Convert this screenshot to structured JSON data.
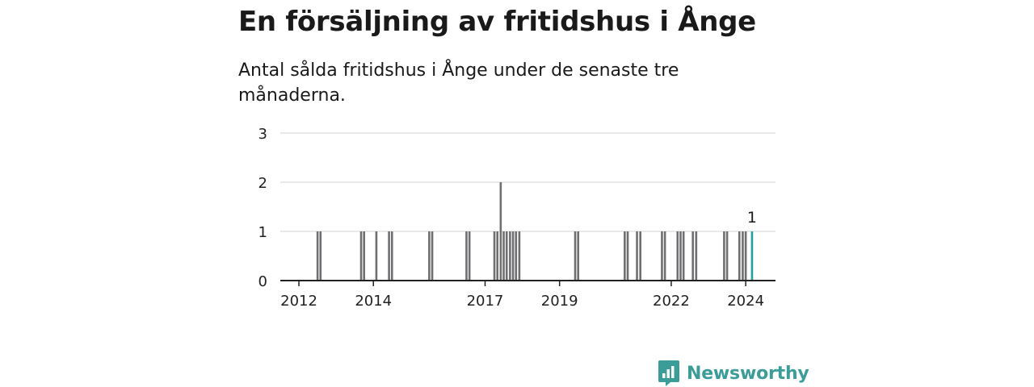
{
  "title": "En försäljning av fritidshus i Ånge",
  "subtitle": "Antal sålda fritidshus i Ånge under de senaste tre månaderna.",
  "brand": {
    "name": "Newsworthy"
  },
  "colors": {
    "bar": "#6f6f71",
    "highlight": "#1fa39c",
    "grid": "#dcdcdc",
    "axis": "#222222",
    "brand": "#3b9c98"
  },
  "chart_data": {
    "type": "bar",
    "x_start": 2011.5,
    "x_end": 2024.8,
    "ylim": [
      0,
      3
    ],
    "yticks": [
      0,
      1,
      2,
      3
    ],
    "xticks": [
      "2012",
      "2014",
      "2017",
      "2019",
      "2022",
      "2024"
    ],
    "grid": true,
    "bars": [
      {
        "x": 2012.5,
        "value": 1
      },
      {
        "x": 2012.58,
        "value": 1
      },
      {
        "x": 2013.67,
        "value": 1
      },
      {
        "x": 2013.75,
        "value": 1
      },
      {
        "x": 2014.08,
        "value": 1
      },
      {
        "x": 2014.42,
        "value": 1
      },
      {
        "x": 2014.5,
        "value": 1
      },
      {
        "x": 2015.5,
        "value": 1
      },
      {
        "x": 2015.58,
        "value": 1
      },
      {
        "x": 2016.5,
        "value": 1
      },
      {
        "x": 2016.58,
        "value": 1
      },
      {
        "x": 2017.25,
        "value": 1
      },
      {
        "x": 2017.33,
        "value": 1
      },
      {
        "x": 2017.42,
        "value": 2
      },
      {
        "x": 2017.5,
        "value": 1
      },
      {
        "x": 2017.58,
        "value": 1
      },
      {
        "x": 2017.67,
        "value": 1
      },
      {
        "x": 2017.75,
        "value": 1
      },
      {
        "x": 2017.83,
        "value": 1
      },
      {
        "x": 2017.92,
        "value": 1
      },
      {
        "x": 2019.42,
        "value": 1
      },
      {
        "x": 2019.5,
        "value": 1
      },
      {
        "x": 2020.75,
        "value": 1
      },
      {
        "x": 2020.83,
        "value": 1
      },
      {
        "x": 2021.08,
        "value": 1
      },
      {
        "x": 2021.17,
        "value": 1
      },
      {
        "x": 2021.75,
        "value": 1
      },
      {
        "x": 2021.83,
        "value": 1
      },
      {
        "x": 2022.17,
        "value": 1
      },
      {
        "x": 2022.25,
        "value": 1
      },
      {
        "x": 2022.33,
        "value": 1
      },
      {
        "x": 2022.58,
        "value": 1
      },
      {
        "x": 2022.67,
        "value": 1
      },
      {
        "x": 2023.42,
        "value": 1
      },
      {
        "x": 2023.5,
        "value": 1
      },
      {
        "x": 2023.83,
        "value": 1
      },
      {
        "x": 2023.92,
        "value": 1
      },
      {
        "x": 2024.0,
        "value": 1
      },
      {
        "x": 2024.17,
        "value": 1,
        "highlight": true,
        "label": "1"
      }
    ]
  }
}
